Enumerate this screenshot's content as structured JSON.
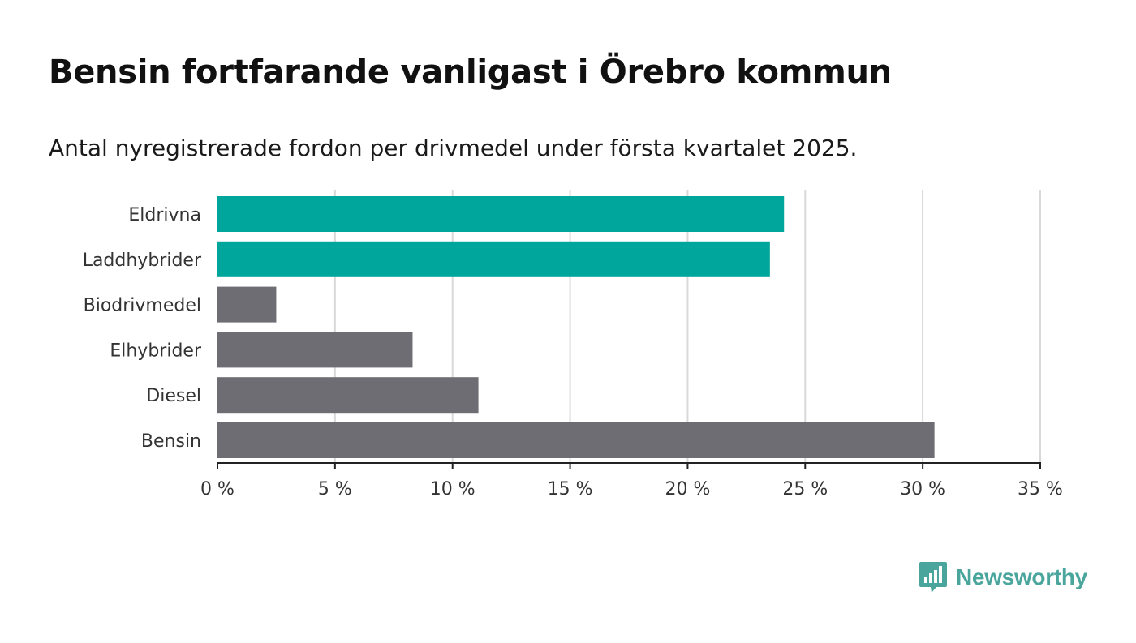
{
  "title": "Bensin fortfarande vanligast i Örebro kommun",
  "subtitle": "Antal nyregistrerade fordon per drivmedel under första kvartalet 2025.",
  "logo": {
    "text": "Newsworthy",
    "icon": "newsworthy-bar-chart-icon",
    "color": "#4aa69d"
  },
  "chart_data": {
    "type": "bar",
    "orientation": "horizontal",
    "categories": [
      "Eldrivna",
      "Laddhybrider",
      "Biodrivmedel",
      "Elhybrider",
      "Diesel",
      "Bensin"
    ],
    "values": [
      24.1,
      23.5,
      2.5,
      8.3,
      11.1,
      30.5
    ],
    "colors": [
      "#00a59b",
      "#00a59b",
      "#6e6d73",
      "#6e6d73",
      "#6e6d73",
      "#6e6d73"
    ],
    "xlim": [
      0,
      35
    ],
    "xticks": [
      0,
      5,
      10,
      15,
      20,
      25,
      30,
      35
    ],
    "xtick_labels": [
      "0 %",
      "5 %",
      "10 %",
      "15 %",
      "20 %",
      "25 %",
      "30 %",
      "35 %"
    ],
    "grid": true,
    "legend": false
  }
}
